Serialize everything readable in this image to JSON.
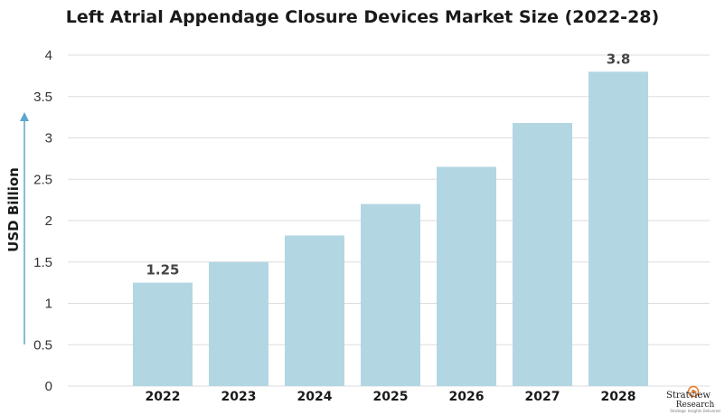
{
  "chart_data": {
    "type": "bar",
    "title": "Left Atrial Appendage Closure Devices Market Size (2022-28)",
    "xlabel": "",
    "ylabel": "USD Billion",
    "categories": [
      "2022",
      "2023",
      "2024",
      "2025",
      "2026",
      "2027",
      "2028"
    ],
    "values": [
      1.25,
      1.5,
      1.82,
      2.2,
      2.65,
      3.18,
      3.8
    ],
    "data_labels": [
      "1.25",
      null,
      null,
      null,
      null,
      null,
      "3.8"
    ],
    "ylim": [
      0,
      4
    ],
    "yticks": [
      0,
      0.5,
      1,
      1.5,
      2,
      2.5,
      3,
      3.5,
      4
    ],
    "ytick_labels": [
      "0",
      "0.5",
      "1",
      "1.5",
      "2",
      "2.5",
      "3",
      "3.5",
      "4"
    ],
    "grid": true,
    "legend": null
  },
  "colors": {
    "bar": "#b3d6e3",
    "grid": "#dddddd",
    "axis_arrow": "#5ba8cc",
    "logo_accent": "#e87722"
  },
  "logo": {
    "name": "Stratview",
    "sub": "Research",
    "tagline": "Strategic Insights Delivered"
  }
}
